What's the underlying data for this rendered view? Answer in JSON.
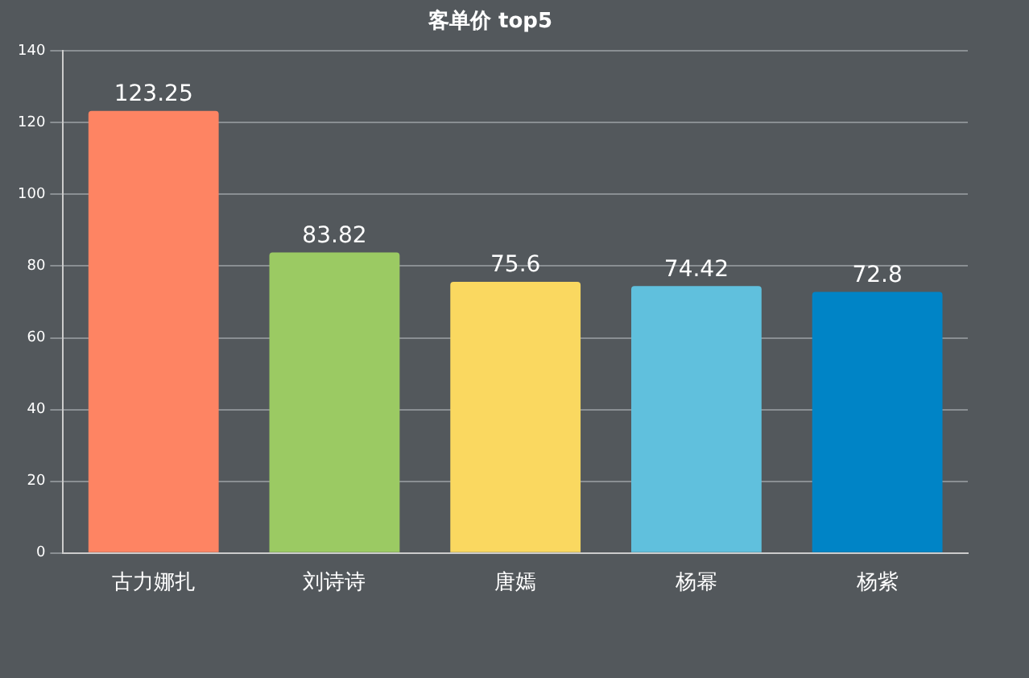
{
  "chart_data": {
    "type": "bar",
    "title": "客单价 top5",
    "categories": [
      "古力娜扎",
      "刘诗诗",
      "唐嫣",
      "杨幂",
      "杨紫"
    ],
    "values": [
      123.25,
      83.82,
      75.6,
      74.42,
      72.8
    ],
    "colors": [
      "#fe8463",
      "#9bca63",
      "#fad860",
      "#60c0dd",
      "#0084c6"
    ],
    "ylim": [
      0,
      140
    ],
    "yticks": [
      0,
      20,
      40,
      60,
      80,
      100,
      120,
      140
    ],
    "grid": "y",
    "data_labels": true
  }
}
